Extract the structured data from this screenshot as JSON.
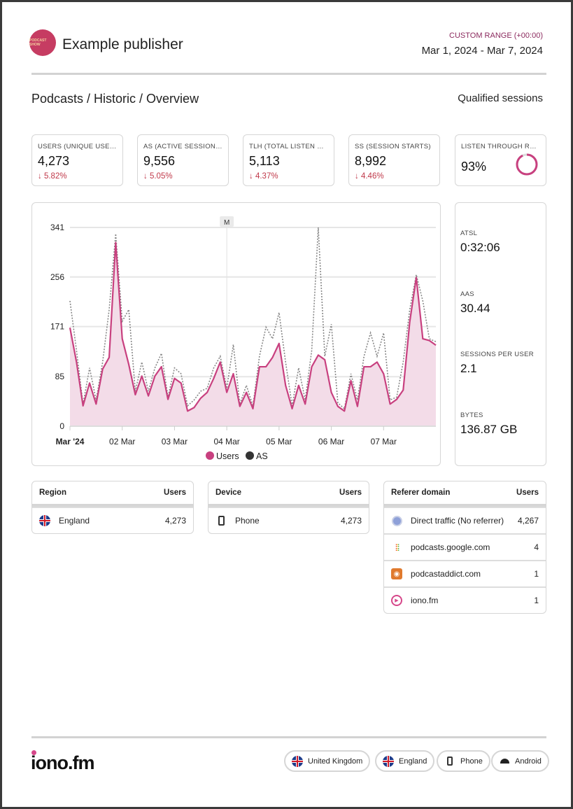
{
  "header": {
    "publisher": "Example publisher",
    "logo_text": "PODCAST SHOW",
    "range_label": "CUSTOM RANGE (+00:00)",
    "date_range": "Mar 1, 2024 - Mar 7, 2024"
  },
  "breadcrumb": "Podcasts / Historic / Overview",
  "mode": "Qualified sessions",
  "kpis": [
    {
      "label": "USERS (UNIQUE USERS)",
      "value": "4,273",
      "change": "5.82%"
    },
    {
      "label": "AS (ACTIVE SESSIONS )",
      "value": "9,556",
      "change": "5.05%"
    },
    {
      "label": "TLH (TOTAL LISTEN HOURS)",
      "value": "5,113",
      "change": "4.37%"
    },
    {
      "label": "SS (SESSION STARTS)",
      "value": "8,992",
      "change": "4.46%"
    }
  ],
  "ltr": {
    "label": "LISTEN THROUGH RATE",
    "value": "93%",
    "fraction": 0.93
  },
  "side_metrics": [
    {
      "label": "ATSL",
      "value": "0:32:06"
    },
    {
      "label": "AAS",
      "value": "30.44"
    },
    {
      "label": "SESSIONS PER USER",
      "value": "2.1"
    },
    {
      "label": "BYTES",
      "value": "136.87 GB"
    }
  ],
  "chart_data": {
    "type": "area",
    "x_tick_labels": [
      "Mar '24",
      "02 Mar",
      "03 Mar",
      "04 Mar",
      "05 Mar",
      "06 Mar",
      "07 Mar"
    ],
    "y_ticks": [
      0,
      85,
      171,
      256,
      341
    ],
    "ylim": [
      0,
      341
    ],
    "marker_label": "M",
    "x_hours": [
      0,
      3,
      6,
      9,
      12,
      15,
      18,
      21,
      24,
      27,
      30,
      33,
      36,
      39,
      42,
      45,
      48,
      51,
      54,
      57,
      60,
      63,
      66,
      69,
      72,
      75,
      78,
      81,
      84,
      87,
      90,
      93,
      96,
      99,
      102,
      105,
      108,
      111,
      114,
      117,
      120,
      123,
      126,
      129,
      132,
      135,
      138,
      141,
      144,
      147,
      150,
      153,
      156,
      159,
      162,
      165,
      168
    ],
    "series": [
      {
        "name": "Users",
        "color": "#c8407f",
        "values": [
          169,
          110,
          35,
          74,
          38,
          98,
          118,
          315,
          150,
          106,
          54,
          86,
          52,
          86,
          102,
          46,
          82,
          74,
          26,
          32,
          48,
          58,
          82,
          110,
          58,
          90,
          34,
          58,
          30,
          102,
          102,
          118,
          142,
          70,
          30,
          70,
          38,
          102,
          122,
          114,
          58,
          34,
          26,
          78,
          34,
          102,
          102,
          110,
          90,
          38,
          46,
          62,
          179,
          255,
          150,
          147,
          139
        ]
      },
      {
        "name": "AS",
        "color": "#333333",
        "values": [
          215,
          130,
          38,
          100,
          45,
          110,
          200,
          330,
          180,
          200,
          60,
          110,
          60,
          100,
          125,
          50,
          100,
          90,
          35,
          45,
          60,
          65,
          100,
          120,
          65,
          140,
          38,
          70,
          35,
          120,
          170,
          150,
          195,
          110,
          35,
          100,
          45,
          130,
          341,
          120,
          175,
          40,
          30,
          90,
          45,
          120,
          160,
          120,
          160,
          45,
          50,
          110,
          200,
          260,
          215,
          150,
          145
        ]
      }
    ],
    "grid": true,
    "legend": "bottom"
  },
  "region": {
    "title": "Region",
    "col": "Users",
    "rows": [
      {
        "name": "England",
        "value": "4,273"
      }
    ]
  },
  "device": {
    "title": "Device",
    "col": "Users",
    "rows": [
      {
        "name": "Phone",
        "value": "4,273"
      }
    ]
  },
  "referer": {
    "title": "Referer domain",
    "col": "Users",
    "rows": [
      {
        "name": "Direct traffic (No referrer)",
        "value": "4,267"
      },
      {
        "name": "podcasts.google.com",
        "value": "4"
      },
      {
        "name": "podcastaddict.com",
        "value": "1"
      },
      {
        "name": "iono.fm",
        "value": "1"
      }
    ]
  },
  "footer": {
    "brand": "iono.fm",
    "filters": [
      "United Kingdom",
      "England",
      "Phone",
      "Android"
    ]
  }
}
